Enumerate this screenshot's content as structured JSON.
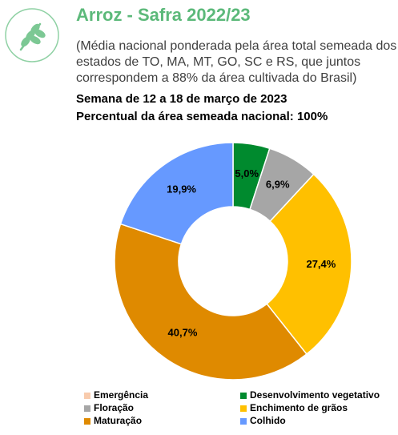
{
  "chart_data": {
    "type": "donut",
    "title": "Arroz - Safra 2022/23",
    "subtitle": [
      "(Média nacional ponderada pela área total semeada dos",
      "estados de TO, MA, MT, GO, SC e RS, que juntos",
      "correspondem a 88% da área cultivada do Brasil)"
    ],
    "week": "Semana de 12 a 18 de março de 2023",
    "coverage": "Percentual da área semeada nacional: 100%",
    "categories": [
      "Emergência",
      "Desenvolvimento vegetativo",
      "Floração",
      "Enchimento de grãos",
      "Maturação",
      "Colhido"
    ],
    "values": [
      0,
      5.0,
      6.9,
      27.4,
      40.7,
      19.9
    ],
    "value_labels": [
      null,
      "5,0%",
      "6,9%",
      "27,4%",
      "40,7%",
      "19,9%"
    ],
    "colors": [
      "#f8cbad",
      "#008a2e",
      "#a6a6a6",
      "#ffc000",
      "#df8a00",
      "#6699ff"
    ]
  }
}
